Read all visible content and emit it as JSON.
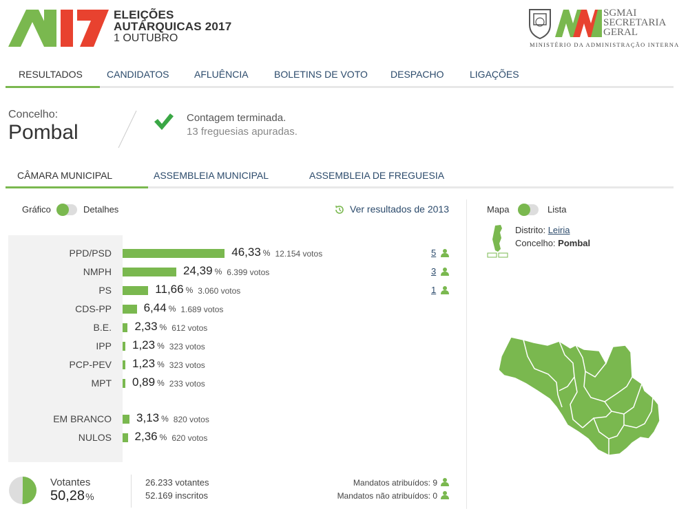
{
  "header": {
    "logo_line1": "ELEIÇÕES",
    "logo_line2": "AUTÁRQUICAS 2017",
    "logo_line3": "1 OUTUBRO",
    "sg_line1": "SGMAI",
    "sg_line2": "SECRETARIA",
    "sg_line3": "GERAL",
    "ministry": "MINISTÉRIO DA ADMINISTRAÇÃO INTERNA"
  },
  "main_nav": [
    "RESULTADOS",
    "CANDIDATOS",
    "AFLUÊNCIA",
    "BOLETINS DE VOTO",
    "DESPACHO",
    "LIGAÇÕES"
  ],
  "location": {
    "label": "Concelho:",
    "name": "Pombal",
    "status_title": "Contagem terminada.",
    "status_detail": "13 freguesias apuradas."
  },
  "sub_nav": [
    "CÂMARA MUNICIPAL",
    "ASSEMBLEIA MUNICIPAL",
    "ASSEMBLEIA DE FREGUESIA"
  ],
  "view_toggle": {
    "left": "Gráfico",
    "right": "Detalhes"
  },
  "previous_results_link": "Ver resultados de 2013",
  "map_toggle": {
    "left": "Mapa",
    "right": "Lista"
  },
  "pct_symbol": "%",
  "results": [
    {
      "party": "PPD/PSD",
      "pct": "46,33",
      "pct_value": 46.33,
      "votes": "12.154 votos",
      "mandates": "5"
    },
    {
      "party": "NMPH",
      "pct": "24,39",
      "pct_value": 24.39,
      "votes": "6.399 votos",
      "mandates": "3"
    },
    {
      "party": "PS",
      "pct": "11,66",
      "pct_value": 11.66,
      "votes": "3.060 votos",
      "mandates": "1"
    },
    {
      "party": "CDS-PP",
      "pct": "6,44",
      "pct_value": 6.44,
      "votes": "1.689 votos"
    },
    {
      "party": "B.E.",
      "pct": "2,33",
      "pct_value": 2.33,
      "votes": "612 votos"
    },
    {
      "party": "IPP",
      "pct": "1,23",
      "pct_value": 1.23,
      "votes": "323 votos"
    },
    {
      "party": "PCP-PEV",
      "pct": "1,23",
      "pct_value": 1.23,
      "votes": "323 votos"
    },
    {
      "party": "MPT",
      "pct": "0,89",
      "pct_value": 0.89,
      "votes": "233 votos"
    }
  ],
  "blank_null": [
    {
      "party": "EM BRANCO",
      "pct": "3,13",
      "pct_value": 3.13,
      "votes": "820 votos"
    },
    {
      "party": "NULOS",
      "pct": "2,36",
      "pct_value": 2.36,
      "votes": "620 votos"
    }
  ],
  "turnout": {
    "label": "Votantes",
    "pct": "50,28",
    "pct_value": 50.28,
    "voters": "26.233 votantes",
    "registered": "52.169 inscritos"
  },
  "mandates": {
    "assigned": "Mandatos atribuídos: 9",
    "unassigned": "Mandatos não atribuídos: 0"
  },
  "region": {
    "district_label": "Distrito:",
    "district": "Leiria",
    "municipality_label": "Concelho:",
    "municipality": "Pombal"
  },
  "colors": {
    "accent": "#7ab84f",
    "logo_red": "#e8422f",
    "link": "#2b4a6b"
  }
}
